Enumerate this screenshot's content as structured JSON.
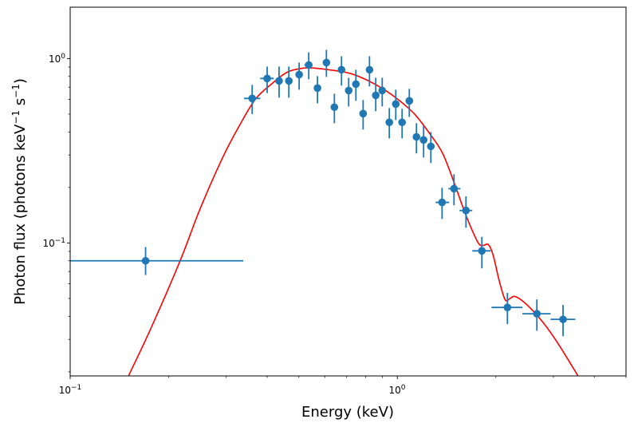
{
  "chart_data": {
    "type": "scatter",
    "title": "",
    "xlabel": "Energy (keV)",
    "ylabel": "Photon flux (photons keV⁻¹ s⁻¹)",
    "ylabel_parts": {
      "main": "Photon flux (photons keV",
      "sup1": "−1",
      "mid": " s",
      "sup2": "−1",
      "end": ")"
    },
    "xscale": "log",
    "yscale": "log",
    "xlim": [
      0.1,
      5.0
    ],
    "ylim": [
      0.019,
      1.9
    ],
    "grid": false,
    "legend": "none",
    "x_ticks": [
      {
        "value": 0.1,
        "base": "10",
        "exp": "−1"
      },
      {
        "value": 1.0,
        "base": "10",
        "exp": "0"
      }
    ],
    "y_ticks": [
      {
        "value": 0.1,
        "base": "10",
        "exp": "−1"
      },
      {
        "value": 1.0,
        "base": "10",
        "exp": "0"
      }
    ],
    "series": [
      {
        "name": "data",
        "kind": "errorbar",
        "color": "#1f77b4",
        "points": [
          {
            "x": 0.17,
            "y": 0.08,
            "xlo": 0.1,
            "xhi": 0.338,
            "ylo": 0.067,
            "yhi": 0.095
          },
          {
            "x": 0.36,
            "y": 0.608,
            "xlo": 0.34,
            "xhi": 0.381,
            "ylo": 0.5,
            "yhi": 0.72
          },
          {
            "x": 0.4,
            "y": 0.78,
            "xlo": 0.381,
            "xhi": 0.419,
            "ylo": 0.65,
            "yhi": 0.905
          },
          {
            "x": 0.435,
            "y": 0.757,
            "xlo": 0.435,
            "xhi": 0.435,
            "ylo": 0.614,
            "yhi": 0.905
          },
          {
            "x": 0.466,
            "y": 0.757,
            "xlo": 0.466,
            "xhi": 0.466,
            "ylo": 0.614,
            "yhi": 0.905
          },
          {
            "x": 0.501,
            "y": 0.819,
            "xlo": 0.501,
            "xhi": 0.501,
            "ylo": 0.678,
            "yhi": 0.951
          },
          {
            "x": 0.536,
            "y": 0.923,
            "xlo": 0.52,
            "xhi": 0.55,
            "ylo": 0.772,
            "yhi": 1.08
          },
          {
            "x": 0.57,
            "y": 0.692,
            "xlo": 0.57,
            "xhi": 0.57,
            "ylo": 0.572,
            "yhi": 0.803
          },
          {
            "x": 0.607,
            "y": 0.951,
            "xlo": 0.607,
            "xhi": 0.607,
            "ylo": 0.795,
            "yhi": 1.116
          },
          {
            "x": 0.642,
            "y": 0.545,
            "xlo": 0.642,
            "xhi": 0.642,
            "ylo": 0.446,
            "yhi": 0.645
          },
          {
            "x": 0.675,
            "y": 0.87,
            "xlo": 0.675,
            "xhi": 0.675,
            "ylo": 0.713,
            "yhi": 1.03
          },
          {
            "x": 0.71,
            "y": 0.671,
            "xlo": 0.71,
            "xhi": 0.71,
            "ylo": 0.55,
            "yhi": 0.787
          },
          {
            "x": 0.747,
            "y": 0.727,
            "xlo": 0.747,
            "xhi": 0.747,
            "ylo": 0.59,
            "yhi": 0.87
          },
          {
            "x": 0.786,
            "y": 0.503,
            "xlo": 0.786,
            "xhi": 0.786,
            "ylo": 0.412,
            "yhi": 0.596
          },
          {
            "x": 0.822,
            "y": 0.87,
            "xlo": 0.822,
            "xhi": 0.822,
            "ylo": 0.706,
            "yhi": 1.03
          },
          {
            "x": 0.859,
            "y": 0.632,
            "xlo": 0.859,
            "xhi": 0.859,
            "ylo": 0.518,
            "yhi": 0.787
          },
          {
            "x": 0.899,
            "y": 0.671,
            "xlo": 0.899,
            "xhi": 0.899,
            "ylo": 0.55,
            "yhi": 0.787
          },
          {
            "x": 0.945,
            "y": 0.451,
            "xlo": 0.945,
            "xhi": 0.945,
            "ylo": 0.369,
            "yhi": 0.539
          },
          {
            "x": 0.989,
            "y": 0.567,
            "xlo": 0.989,
            "xhi": 0.989,
            "ylo": 0.464,
            "yhi": 0.678
          },
          {
            "x": 1.034,
            "y": 0.451,
            "xlo": 1.034,
            "xhi": 1.034,
            "ylo": 0.369,
            "yhi": 0.534
          },
          {
            "x": 1.088,
            "y": 0.59,
            "xlo": 1.088,
            "xhi": 1.088,
            "ylo": 0.483,
            "yhi": 0.685
          },
          {
            "x": 1.144,
            "y": 0.376,
            "xlo": 1.144,
            "xhi": 1.144,
            "ylo": 0.306,
            "yhi": 0.446
          },
          {
            "x": 1.203,
            "y": 0.362,
            "xlo": 1.203,
            "xhi": 1.203,
            "ylo": 0.291,
            "yhi": 0.433
          },
          {
            "x": 1.266,
            "y": 0.334,
            "xlo": 1.266,
            "xhi": 1.266,
            "ylo": 0.271,
            "yhi": 0.4
          },
          {
            "x": 1.37,
            "y": 0.166,
            "xlo": 1.309,
            "xhi": 1.44,
            "ylo": 0.135,
            "yhi": 0.199
          },
          {
            "x": 1.49,
            "y": 0.197,
            "xlo": 1.432,
            "xhi": 1.558,
            "ylo": 0.16,
            "yhi": 0.236
          },
          {
            "x": 1.621,
            "y": 0.15,
            "xlo": 1.549,
            "xhi": 1.695,
            "ylo": 0.121,
            "yhi": 0.179
          },
          {
            "x": 1.813,
            "y": 0.0906,
            "xlo": 1.695,
            "xhi": 1.929,
            "ylo": 0.0728,
            "yhi": 0.108
          },
          {
            "x": 2.17,
            "y": 0.0447,
            "xlo": 1.94,
            "xhi": 2.41,
            "ylo": 0.0363,
            "yhi": 0.0536
          },
          {
            "x": 2.67,
            "y": 0.0413,
            "xlo": 2.41,
            "xhi": 2.94,
            "ylo": 0.0334,
            "yhi": 0.0494
          },
          {
            "x": 3.21,
            "y": 0.0385,
            "xlo": 2.94,
            "xhi": 3.5,
            "ylo": 0.0312,
            "yhi": 0.0461
          }
        ]
      },
      {
        "name": "model",
        "kind": "line",
        "color": "#ff0000",
        "x": [
          0.151,
          0.177,
          0.217,
          0.248,
          0.291,
          0.329,
          0.368,
          0.412,
          0.461,
          0.515,
          0.561,
          0.645,
          0.722,
          0.808,
          0.904,
          1.011,
          1.131,
          1.266,
          1.377,
          1.499,
          1.585,
          1.676,
          1.774,
          1.835,
          1.898,
          1.962,
          2.042,
          2.134,
          2.21,
          2.296,
          2.483,
          2.78,
          3.11,
          3.56
        ],
        "y": [
          0.0191,
          0.0348,
          0.0803,
          0.149,
          0.285,
          0.433,
          0.601,
          0.727,
          0.844,
          0.887,
          0.887,
          0.861,
          0.828,
          0.764,
          0.685,
          0.595,
          0.498,
          0.384,
          0.305,
          0.207,
          0.157,
          0.122,
          0.099,
          0.097,
          0.098,
          0.086,
          0.0638,
          0.0493,
          0.05,
          0.0512,
          0.0464,
          0.0373,
          0.0282,
          0.0191
        ]
      }
    ]
  }
}
